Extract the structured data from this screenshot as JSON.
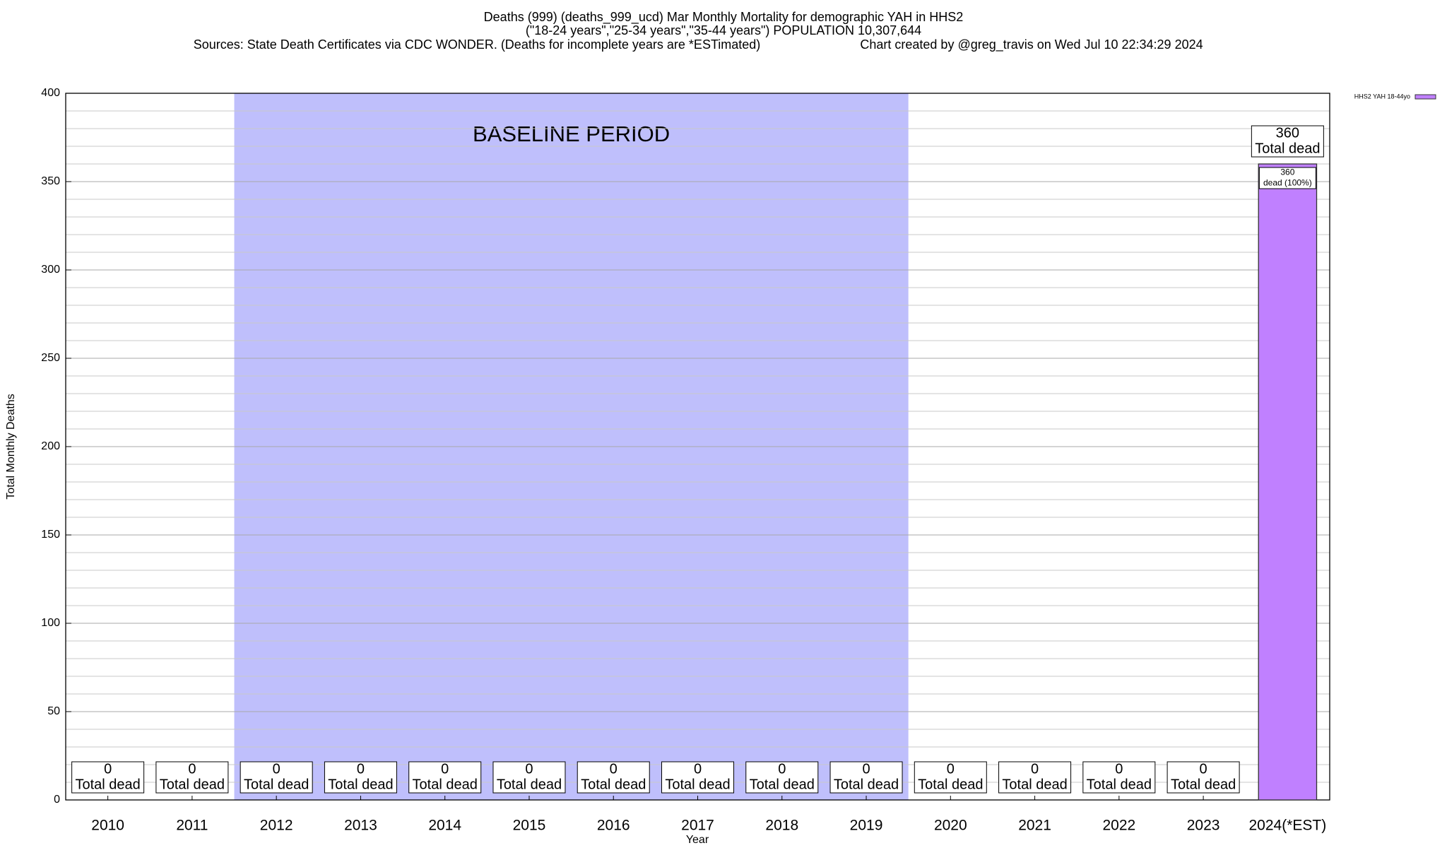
{
  "chart_data": {
    "type": "bar",
    "title": "Deaths (999) (deaths_999_ucd) Mar Monthly Mortality for demographic YAH in HHS2",
    "subtitle": "(\"18-24 years\",\"25-34 years\",\"35-44 years\") POPULATION 10,307,644",
    "sources": "Sources: State Death Certificates via CDC WONDER. (Deaths for incomplete years are *ESTimated)",
    "credit": "Chart created by @greg_travis on Wed Jul 10 22:34:29 2024",
    "x_label": "Year",
    "y_label": "Total Monthly Deaths",
    "categories": [
      "2010",
      "2011",
      "2012",
      "2013",
      "2014",
      "2015",
      "2016",
      "2017",
      "2018",
      "2019",
      "2020",
      "2021",
      "2022",
      "2023",
      "2024(*EST)"
    ],
    "series": [
      {
        "name": "HHS2 YAH 18-44yo",
        "color": "#c080ff",
        "values": [
          0,
          0,
          0,
          0,
          0,
          0,
          0,
          0,
          0,
          0,
          0,
          0,
          0,
          0,
          360
        ]
      }
    ],
    "total_label": "Total dead",
    "share_labels": [
      null,
      null,
      null,
      null,
      null,
      null,
      null,
      null,
      null,
      null,
      null,
      null,
      null,
      null,
      "dead (100%)"
    ],
    "baseline": {
      "label": "BASELINE PERIOD",
      "start": "2012",
      "end": "2019",
      "color": "#bfbffc"
    },
    "ylim": [
      0,
      400
    ],
    "yticks": [
      0,
      50,
      100,
      150,
      200,
      250,
      300,
      350,
      400
    ],
    "minor_yticks": [
      10,
      20,
      30,
      40,
      60,
      70,
      80,
      90,
      110,
      120,
      130,
      140,
      160,
      170,
      180,
      190,
      210,
      220,
      230,
      240,
      260,
      270,
      280,
      290,
      310,
      320,
      330,
      340,
      360,
      370,
      380,
      390
    ],
    "grid": true,
    "legend": "top-right"
  }
}
